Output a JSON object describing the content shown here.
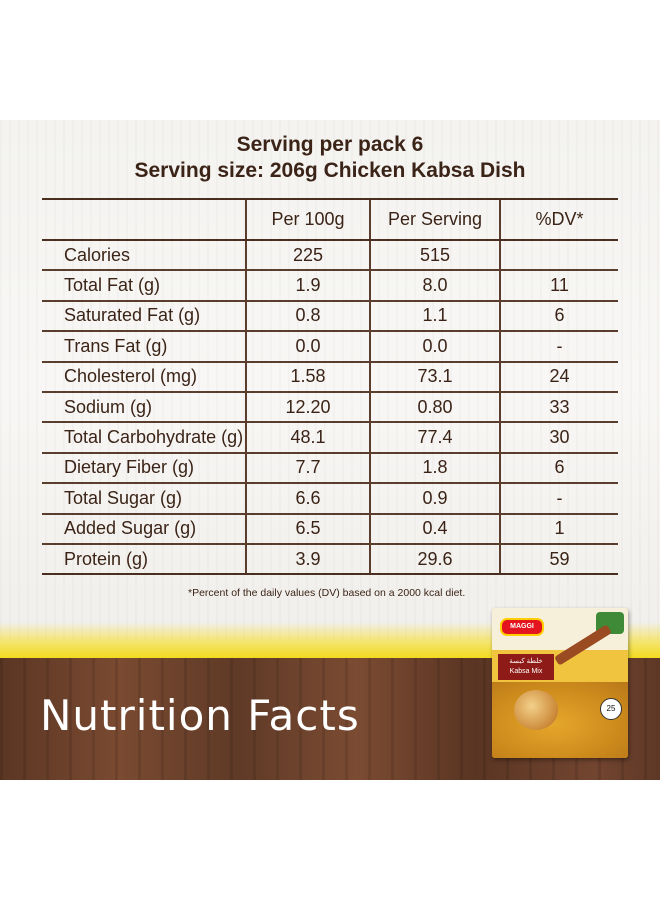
{
  "header": {
    "servings_per_pack": "Serving per pack 6",
    "serving_size": "Serving size: 206g Chicken Kabsa Dish"
  },
  "table": {
    "columns": [
      "",
      "Per 100g",
      "Per Serving",
      "%DV*"
    ],
    "rows": [
      {
        "nutrient": "Calories",
        "per_100g": "225",
        "per_serving": "515",
        "dv": ""
      },
      {
        "nutrient": "Total Fat (g)",
        "per_100g": "1.9",
        "per_serving": "8.0",
        "dv": "11"
      },
      {
        "nutrient": "Saturated Fat (g)",
        "per_100g": "0.8",
        "per_serving": "1.1",
        "dv": "6"
      },
      {
        "nutrient": "Trans Fat (g)",
        "per_100g": "0.0",
        "per_serving": "0.0",
        "dv": "-"
      },
      {
        "nutrient": "Cholesterol (mg)",
        "per_100g": "1.58",
        "per_serving": "73.1",
        "dv": "24"
      },
      {
        "nutrient": "Sodium (g)",
        "per_100g": "12.20",
        "per_serving": "0.80",
        "dv": "33"
      },
      {
        "nutrient": "Total Carbohydrate (g)",
        "per_100g": "48.1",
        "per_serving": "77.4",
        "dv": "30"
      },
      {
        "nutrient": "Dietary Fiber (g)",
        "per_100g": "7.7",
        "per_serving": "1.8",
        "dv": "6"
      },
      {
        "nutrient": "Total Sugar (g)",
        "per_100g": "6.6",
        "per_serving": "0.9",
        "dv": "-"
      },
      {
        "nutrient": "Added Sugar (g)",
        "per_100g": "6.5",
        "per_serving": "0.4",
        "dv": "1"
      },
      {
        "nutrient": "Protein (g)",
        "per_100g": "3.9",
        "per_serving": "29.6",
        "dv": "59"
      }
    ]
  },
  "footnote": "*Percent of the daily values (DV) based on a 2000 kcal diet.",
  "banner_title": "Nutrition Facts",
  "package": {
    "brand": "MAGGI",
    "arabic_name": "خلطة كبسة",
    "product_name": "Kabsa Mix",
    "badge": "25"
  },
  "colors": {
    "text_brown": "#3b2417",
    "accent_yellow": "#f2d80a",
    "wood_brown": "#6b402b"
  }
}
